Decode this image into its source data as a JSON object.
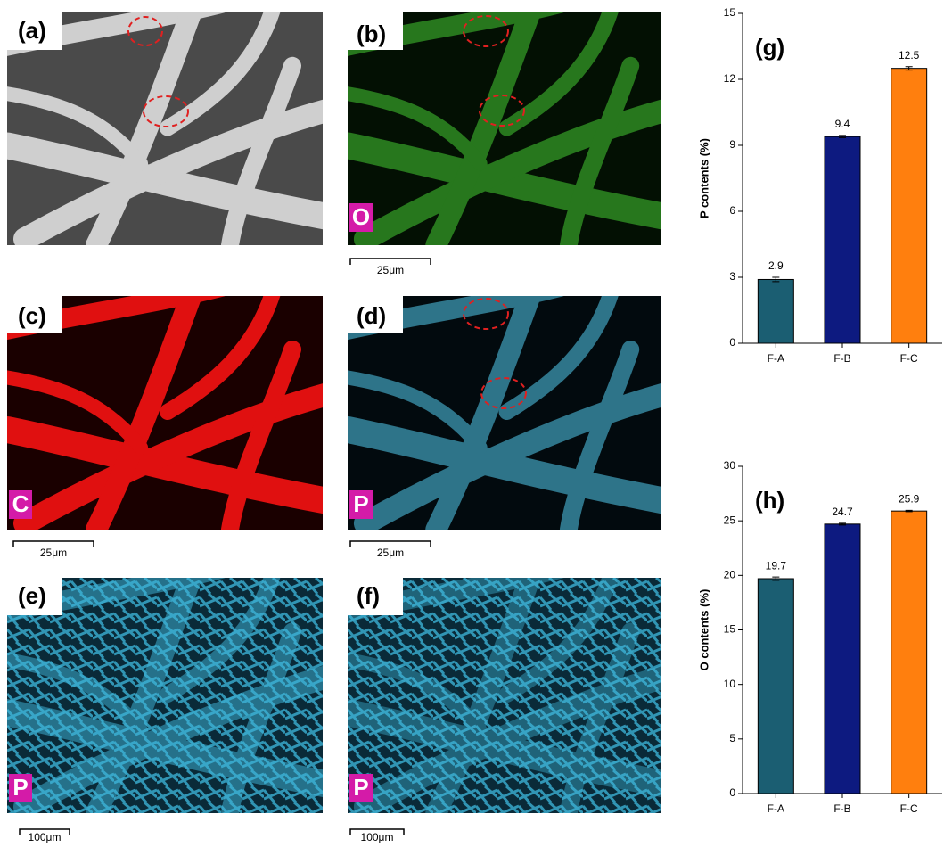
{
  "panels": [
    {
      "label": "(a)"
    },
    {
      "label": "(b)",
      "element": "O",
      "scale_bar": "25μm"
    },
    {
      "label": "(c)",
      "element": "C",
      "scale_bar": "25μm"
    },
    {
      "label": "(d)",
      "element": "P",
      "scale_bar": "25μm"
    },
    {
      "label": "(e)",
      "element": "P",
      "scale_bar": "100μm"
    },
    {
      "label": "(f)",
      "element": "P",
      "scale_bar": "100μm"
    }
  ],
  "chart_data": [
    {
      "type": "bar",
      "title": "(g)",
      "y_label": "P contents (%)",
      "categories": [
        "F-A",
        "F-B",
        "F-C"
      ],
      "values": [
        2.9,
        9.4,
        12.5
      ],
      "errors": [
        0.1,
        0.05,
        0.08
      ],
      "colors": [
        "#1b5e72",
        "#0d1a80",
        "#ff7f0e"
      ],
      "ylim": [
        0,
        15
      ],
      "yticks": [
        0,
        3,
        6,
        9,
        12,
        15
      ]
    },
    {
      "type": "bar",
      "title": "(h)",
      "y_label": "O contents (%)",
      "categories": [
        "F-A",
        "F-B",
        "F-C"
      ],
      "values": [
        19.7,
        24.7,
        25.9
      ],
      "errors": [
        0.15,
        0.08,
        0.06
      ],
      "colors": [
        "#1b5e72",
        "#0d1a80",
        "#ff7f0e"
      ],
      "ylim": [
        0,
        30
      ],
      "yticks": [
        0,
        5,
        10,
        15,
        20,
        25,
        30
      ]
    }
  ]
}
